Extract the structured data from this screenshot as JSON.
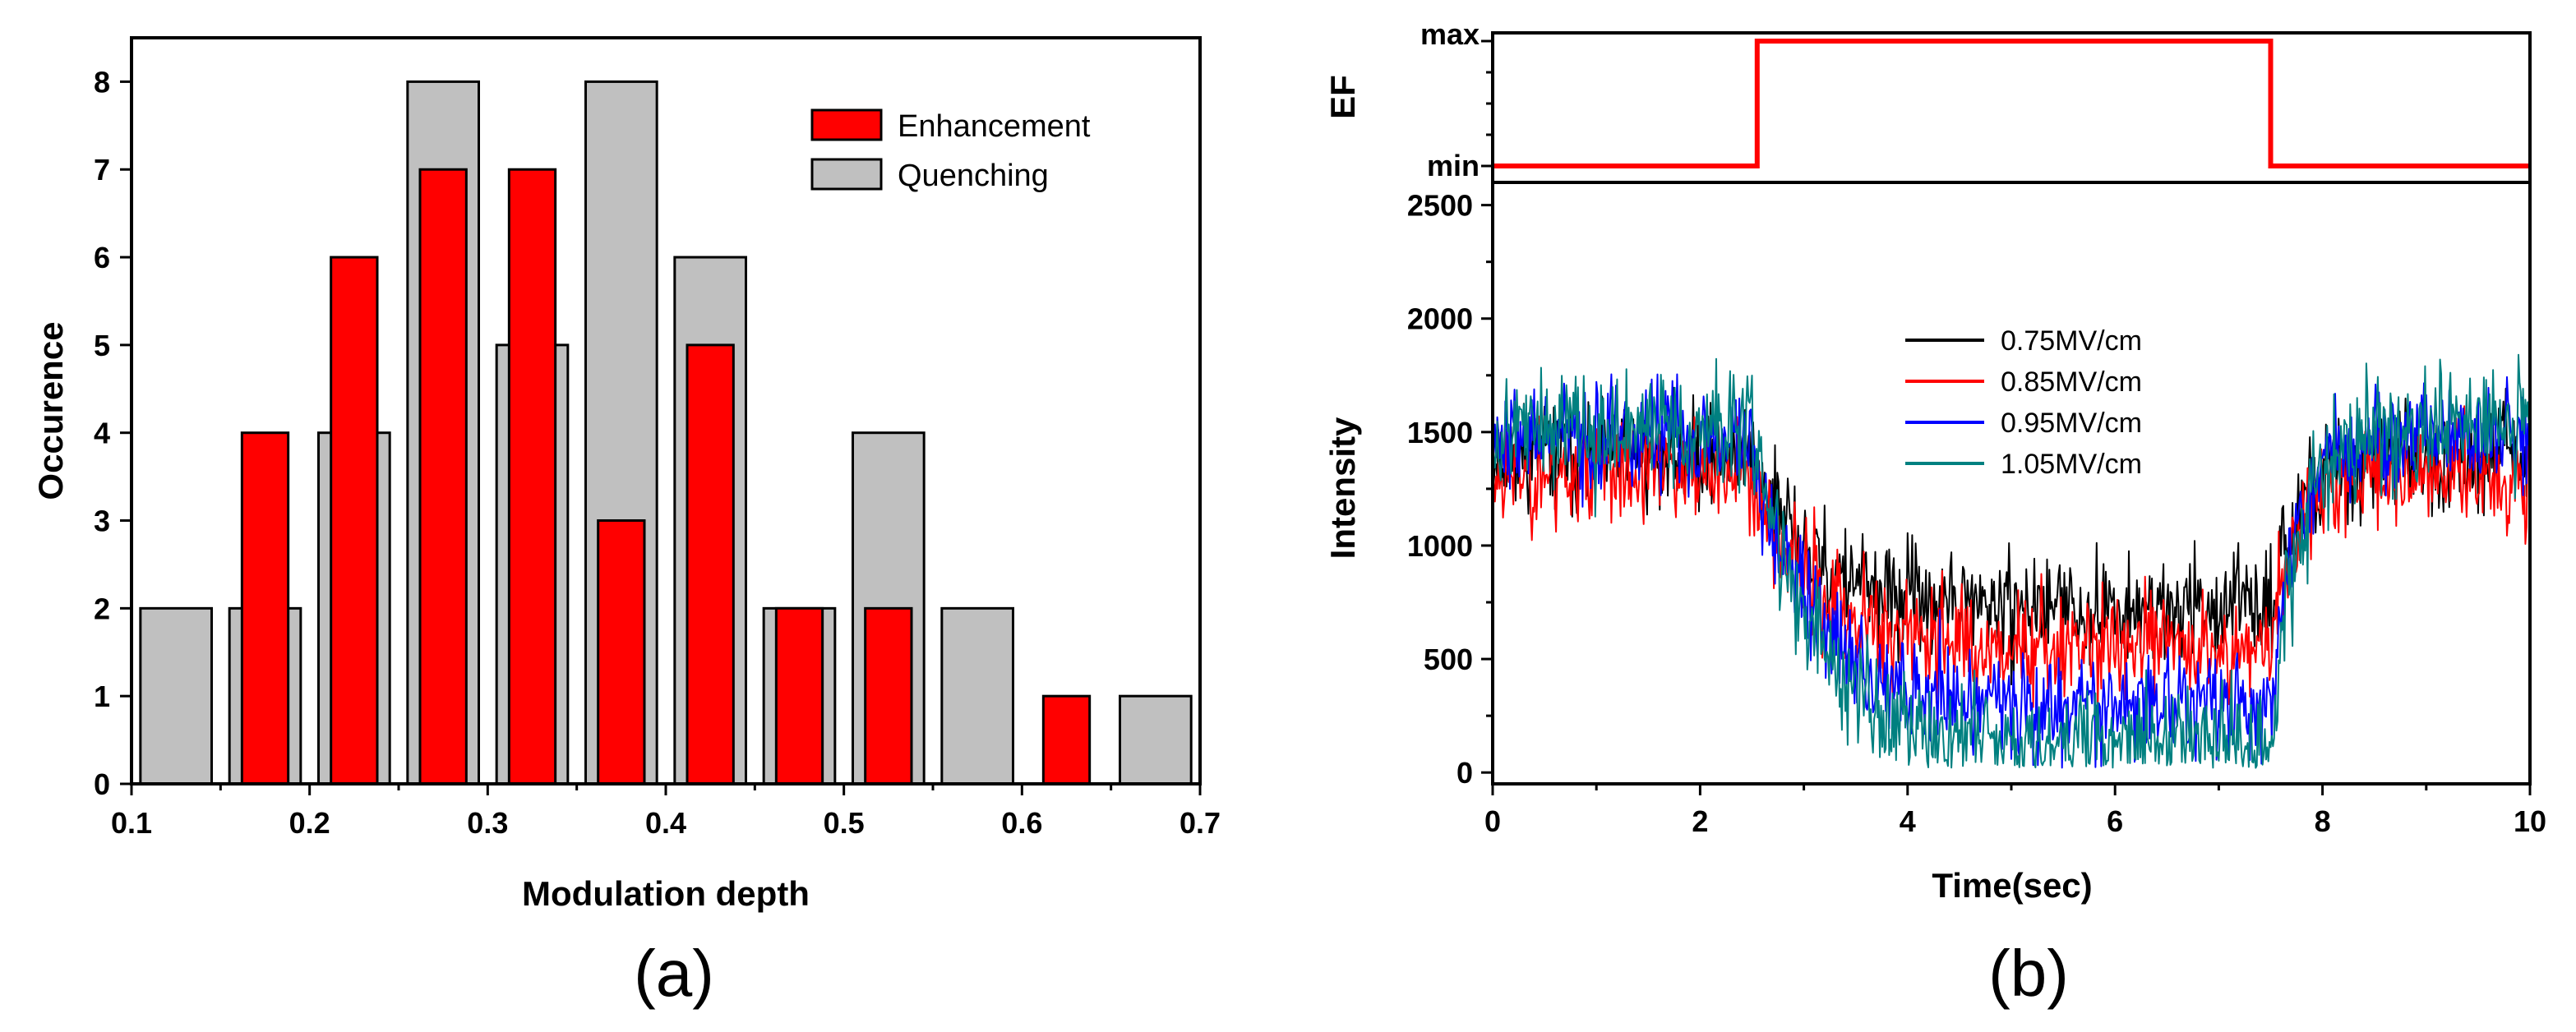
{
  "chart_data": [
    {
      "type": "bar",
      "panel_label": "(a)",
      "xlabel": "Modulation depth",
      "ylabel": "Occurence",
      "xlim": [
        0.1,
        0.7
      ],
      "ylim": [
        0,
        8.5
      ],
      "x_ticks": [
        "0.1",
        "0.2",
        "0.3",
        "0.4",
        "0.5",
        "0.6",
        "0.7"
      ],
      "y_ticks": [
        "0",
        "1",
        "2",
        "3",
        "4",
        "5",
        "6",
        "7",
        "8"
      ],
      "legend_position": "top-right",
      "series": [
        {
          "name": "Quenching",
          "color": "#c0c0c0",
          "bin_width": 0.04,
          "x": [
            0.125,
            0.175,
            0.225,
            0.275,
            0.325,
            0.375,
            0.425,
            0.475,
            0.525,
            0.575,
            0.675
          ],
          "values": [
            2,
            2,
            4,
            8,
            5,
            8,
            6,
            2,
            4,
            2,
            1
          ]
        },
        {
          "name": "Enhancement",
          "color": "#ff0000",
          "bin_width": 0.026,
          "x": [
            0.175,
            0.225,
            0.275,
            0.325,
            0.375,
            0.425,
            0.475,
            0.525,
            0.625
          ],
          "values": [
            4,
            6,
            7,
            7,
            3,
            5,
            2,
            2,
            1
          ]
        }
      ]
    },
    {
      "type": "line",
      "panel_label": "(b)",
      "xlabel": "Time(sec)",
      "x_ticks": [
        "0",
        "2",
        "4",
        "6",
        "8",
        "10"
      ],
      "xlim": [
        0,
        10
      ],
      "top": {
        "ylabel": "EF",
        "y_ticks": [
          "min",
          "max"
        ],
        "color": "#ff0000",
        "x": [
          0,
          2.55,
          2.55,
          7.5,
          7.5,
          10
        ],
        "level": [
          0,
          0,
          1,
          1,
          0,
          0
        ]
      },
      "bottom": {
        "ylabel": "Intensity",
        "ylim": [
          -50,
          2600
        ],
        "y_ticks": [
          "0",
          "500",
          "1000",
          "1500",
          "2000",
          "2500"
        ],
        "legend_position": "center",
        "series": [
          {
            "name": "0.75MV/cm",
            "color": "#000000",
            "high": 1400,
            "low": 720,
            "noise": 190,
            "seed": 11
          },
          {
            "name": "0.85MV/cm",
            "color": "#ff0000",
            "high": 1320,
            "low": 560,
            "noise": 200,
            "seed": 23
          },
          {
            "name": "0.95MV/cm",
            "color": "#0000ff",
            "high": 1480,
            "low": 300,
            "noise": 200,
            "seed": 37
          },
          {
            "name": "1.05MV/cm",
            "color": "#008080",
            "high": 1520,
            "low": 140,
            "noise": 210,
            "seed": 53
          }
        ]
      }
    }
  ]
}
